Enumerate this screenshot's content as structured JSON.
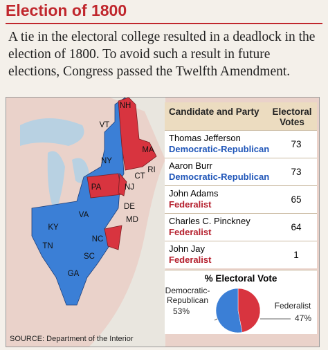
{
  "header": {
    "title": "Election of 1800"
  },
  "intro": "A tie in the electoral college resulted in a deadlock in the election of 1800. To avoid such a result in future elections, Congress passed the Twelfth Amendment.",
  "map": {
    "labels": [
      "NH",
      "VT",
      "MA",
      "NY",
      "RI",
      "CT",
      "PA",
      "NJ",
      "DE",
      "MD",
      "KY",
      "VA",
      "TN",
      "NC",
      "SC",
      "GA"
    ]
  },
  "table": {
    "headers": [
      "Candidate and Party",
      "Electoral Votes"
    ],
    "rows": [
      {
        "name": "Thomas Jefferson",
        "party": "Democratic-Republican",
        "votes": 73,
        "color": "#1f55b8"
      },
      {
        "name": "Aaron Burr",
        "party": "Democratic-Republican",
        "votes": 73,
        "color": "#1f55b8"
      },
      {
        "name": "John Adams",
        "party": "Federalist",
        "votes": 65,
        "color": "#b5202e"
      },
      {
        "name": "Charles C. Pinckney",
        "party": "Federalist",
        "votes": 64,
        "color": "#b5202e"
      },
      {
        "name": "John Jay",
        "party": "Federalist",
        "votes": 1,
        "color": "#b5202e"
      }
    ]
  },
  "pie": {
    "type": "pie",
    "title": "% Electoral Vote",
    "categories": [
      "Democratic-Republican",
      "Federalist"
    ],
    "values": [
      53,
      47
    ],
    "value_labels": [
      "53%",
      "47%"
    ],
    "colors": [
      "#3b7fd6",
      "#d8343f"
    ]
  },
  "source": "SOURCE: Department of the Interior"
}
